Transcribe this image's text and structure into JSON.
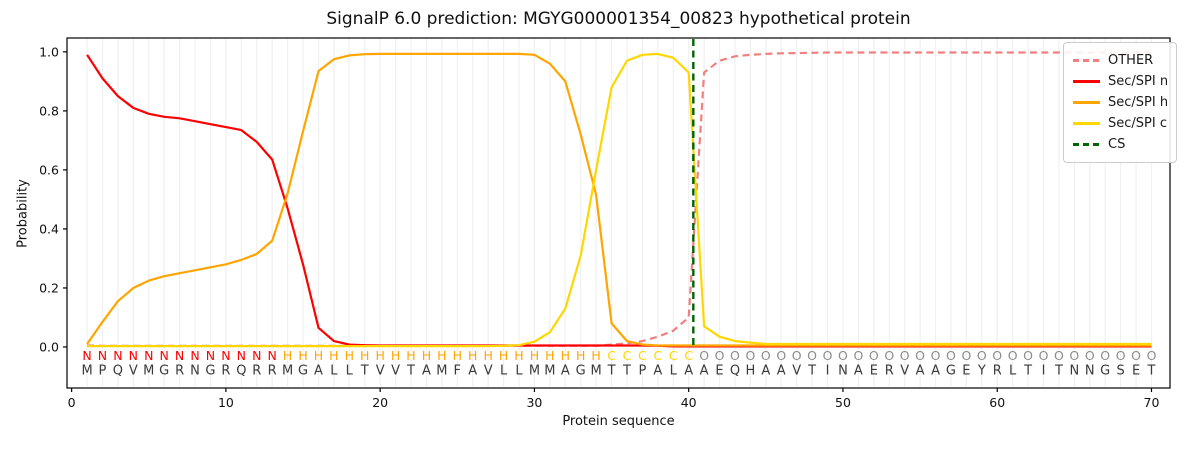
{
  "title": "SignalP 6.0 prediction: MGYG000001354_00823 hypothetical protein",
  "chart_data": {
    "type": "line",
    "title": "SignalP 6.0 prediction: MGYG000001354_00823 hypothetical protein",
    "xlabel": "Protein sequence",
    "ylabel": "Probability",
    "xlim": [
      -0.3,
      71.2
    ],
    "ylim": [
      -0.139,
      1.047
    ],
    "xticks": [
      0,
      10,
      20,
      30,
      40,
      50,
      60,
      70
    ],
    "yticks": [
      0.0,
      0.2,
      0.4,
      0.6,
      0.8,
      1.0
    ],
    "yticklabels": [
      "0.0",
      "0.2",
      "0.4",
      "0.6",
      "0.8",
      "1.0"
    ],
    "grid": "vertical line at every residue position",
    "grid_color": "#f0f0f0",
    "legend_position": "upper right",
    "positions": [
      1,
      2,
      3,
      4,
      5,
      6,
      7,
      8,
      9,
      10,
      11,
      12,
      13,
      14,
      15,
      16,
      17,
      18,
      19,
      20,
      21,
      22,
      23,
      24,
      25,
      26,
      27,
      28,
      29,
      30,
      31,
      32,
      33,
      34,
      35,
      36,
      37,
      38,
      39,
      40,
      41,
      42,
      43,
      44,
      45,
      46,
      47,
      48,
      49,
      50,
      51,
      52,
      53,
      54,
      55,
      56,
      57,
      58,
      59,
      60,
      61,
      62,
      63,
      64,
      65,
      66,
      67,
      68,
      69,
      70
    ],
    "series": [
      {
        "name": "OTHER",
        "color": "#f08080",
        "dashed": true,
        "values": [
          0.005,
          0.004,
          0.004,
          0.004,
          0.004,
          0.004,
          0.004,
          0.004,
          0.004,
          0.004,
          0.004,
          0.004,
          0.004,
          0.004,
          0.004,
          0.004,
          0.004,
          0.004,
          0.004,
          0.004,
          0.004,
          0.004,
          0.004,
          0.004,
          0.004,
          0.004,
          0.004,
          0.004,
          0.004,
          0.004,
          0.004,
          0.004,
          0.004,
          0.004,
          0.008,
          0.012,
          0.02,
          0.035,
          0.055,
          0.1,
          0.93,
          0.97,
          0.985,
          0.99,
          0.993,
          0.995,
          0.996,
          0.997,
          0.998,
          0.998,
          0.998,
          0.998,
          0.998,
          0.998,
          0.998,
          0.998,
          0.998,
          0.998,
          0.998,
          0.998,
          0.998,
          0.998,
          0.998,
          0.998,
          0.998,
          0.998,
          0.998,
          0.998,
          0.998,
          0.998
        ]
      },
      {
        "name": "Sec/SPI n",
        "color": "#ff0000",
        "dashed": false,
        "values": [
          0.99,
          0.91,
          0.85,
          0.81,
          0.79,
          0.78,
          0.775,
          0.765,
          0.755,
          0.745,
          0.735,
          0.695,
          0.635,
          0.47,
          0.28,
          0.065,
          0.02,
          0.008,
          0.006,
          0.005,
          0.005,
          0.005,
          0.005,
          0.005,
          0.005,
          0.005,
          0.005,
          0.005,
          0.005,
          0.005,
          0.005,
          0.005,
          0.005,
          0.005,
          0.005,
          0.005,
          0.005,
          0.004,
          0.002,
          0.002,
          0.002,
          0.002,
          0.002,
          0.002,
          0.002,
          0.002,
          0.002,
          0.002,
          0.002,
          0.002,
          0.002,
          0.002,
          0.002,
          0.002,
          0.002,
          0.002,
          0.002,
          0.002,
          0.002,
          0.002,
          0.002,
          0.002,
          0.002,
          0.002,
          0.002,
          0.002,
          0.002,
          0.002,
          0.002,
          0.002
        ]
      },
      {
        "name": "Sec/SPI h",
        "color": "#ffa500",
        "dashed": false,
        "values": [
          0.01,
          0.085,
          0.155,
          0.2,
          0.225,
          0.24,
          0.25,
          0.26,
          0.27,
          0.28,
          0.295,
          0.315,
          0.36,
          0.52,
          0.73,
          0.935,
          0.975,
          0.988,
          0.992,
          0.993,
          0.993,
          0.993,
          0.993,
          0.993,
          0.993,
          0.993,
          0.993,
          0.993,
          0.993,
          0.99,
          0.96,
          0.9,
          0.72,
          0.515,
          0.08,
          0.02,
          0.008,
          0.005,
          0.005,
          0.005,
          0.005,
          0.005,
          0.005,
          0.005,
          0.005,
          0.005,
          0.005,
          0.005,
          0.005,
          0.005,
          0.005,
          0.005,
          0.005,
          0.005,
          0.005,
          0.005,
          0.005,
          0.005,
          0.005,
          0.005,
          0.005,
          0.005,
          0.005,
          0.005,
          0.005,
          0.005,
          0.005,
          0.005,
          0.005,
          0.005
        ]
      },
      {
        "name": "Sec/SPI c",
        "color": "#ffd700",
        "dashed": false,
        "values": [
          0.003,
          0.003,
          0.003,
          0.003,
          0.003,
          0.003,
          0.003,
          0.003,
          0.003,
          0.003,
          0.003,
          0.003,
          0.003,
          0.003,
          0.003,
          0.003,
          0.003,
          0.003,
          0.003,
          0.003,
          0.003,
          0.003,
          0.003,
          0.003,
          0.003,
          0.003,
          0.003,
          0.004,
          0.006,
          0.018,
          0.05,
          0.13,
          0.31,
          0.6,
          0.88,
          0.97,
          0.99,
          0.993,
          0.98,
          0.93,
          0.07,
          0.035,
          0.02,
          0.015,
          0.01,
          0.01,
          0.01,
          0.01,
          0.01,
          0.01,
          0.01,
          0.01,
          0.01,
          0.01,
          0.01,
          0.01,
          0.01,
          0.01,
          0.01,
          0.01,
          0.01,
          0.01,
          0.01,
          0.01,
          0.01,
          0.01,
          0.01,
          0.01,
          0.01,
          0.01
        ]
      }
    ],
    "cs_line": {
      "name": "CS",
      "color": "#006400",
      "x": 40.3,
      "dashed": true
    },
    "sequence": "MPQVMGRNGRQRRMGALLTVVTAMFAVLLMMAGMTTPALAAEQHAAVTINAERVAAGEYRLTITNNGSET",
    "residue_classes": "NNNNNNNNNNNNNHHHHHHHHHHHHHHHHHHHHHCCCCCCOOOOOOOOOOOOOOOOOOOOOOOOOOOOOO",
    "class_colors": {
      "N": "#ff0000",
      "H": "#ffa500",
      "C": "#ffd700",
      "O": "#8c8c8c"
    },
    "sequence_color": "#3a3a3a"
  },
  "legend": {
    "items": [
      {
        "label": "OTHER",
        "color": "#f08080",
        "dashed": true
      },
      {
        "label": "Sec/SPI n",
        "color": "#ff0000",
        "dashed": false
      },
      {
        "label": "Sec/SPI h",
        "color": "#ffa500",
        "dashed": false
      },
      {
        "label": "Sec/SPI c",
        "color": "#ffd700",
        "dashed": false
      },
      {
        "label": "CS",
        "color": "#006400",
        "dashed": true
      }
    ]
  }
}
